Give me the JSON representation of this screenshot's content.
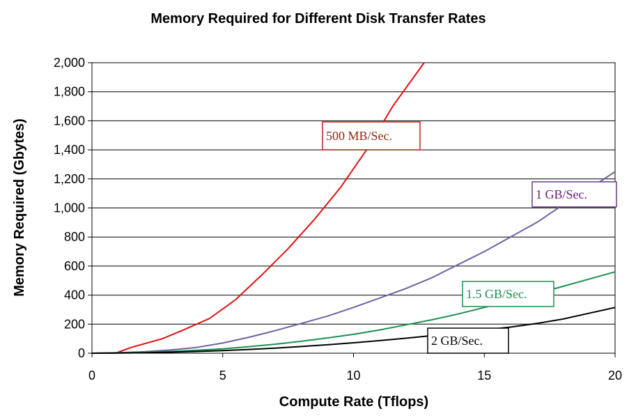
{
  "chart_data": {
    "type": "line",
    "title": "Memory Required for Different Disk Transfer Rates",
    "xlabel": "Compute Rate (Tflops)",
    "ylabel": "Memory Required (Gbytes)",
    "xlim": [
      0,
      20
    ],
    "ylim": [
      0,
      2000
    ],
    "x_ticks": [
      "0",
      "5",
      "10",
      "15",
      "20"
    ],
    "y_ticks": [
      "0",
      "200",
      "400",
      "600",
      "800",
      "1,000",
      "1,200",
      "1,400",
      "1,600",
      "1,800",
      "2,000"
    ],
    "grid": "horizontal",
    "series": [
      {
        "name": "500 MB/Sec.",
        "color": "#e01010",
        "x": [
          0,
          0.9,
          1.5,
          2.7,
          3.5,
          4.5,
          5.5,
          6.5,
          7.5,
          8.5,
          9.5,
          10.5,
          11.5,
          12.7
        ],
        "y": [
          0,
          0,
          40,
          100,
          160,
          240,
          370,
          540,
          720,
          920,
          1140,
          1400,
          1700,
          2000
        ]
      },
      {
        "name": "1 GB/Sec.",
        "color": "#6b62a0",
        "x": [
          0,
          1,
          2,
          3,
          4,
          5,
          6,
          7,
          8,
          9,
          10,
          11,
          12,
          13,
          14,
          15,
          16,
          17,
          18,
          19,
          20
        ],
        "y": [
          0,
          4,
          10,
          22,
          40,
          70,
          110,
          155,
          205,
          255,
          315,
          380,
          445,
          520,
          610,
          700,
          800,
          900,
          1020,
          1130,
          1250
        ]
      },
      {
        "name": "1.5 GB/Sec.",
        "color": "#1a9050",
        "x": [
          0,
          1,
          2,
          3,
          4,
          5,
          6,
          7,
          8,
          9,
          10,
          11,
          12,
          13,
          14,
          15,
          16,
          17,
          18,
          19,
          20
        ],
        "y": [
          0,
          2,
          6,
          12,
          20,
          30,
          45,
          62,
          82,
          105,
          130,
          160,
          195,
          230,
          270,
          315,
          360,
          410,
          460,
          510,
          560
        ]
      },
      {
        "name": "2 GB/Sec.",
        "color": "#000000",
        "x": [
          0,
          1,
          2,
          3,
          4,
          5,
          6,
          7,
          8,
          9,
          10,
          11,
          12,
          13,
          14,
          15,
          16,
          17,
          18,
          19,
          20
        ],
        "y": [
          0,
          1,
          3,
          7,
          12,
          18,
          26,
          35,
          46,
          58,
          72,
          87,
          103,
          121,
          140,
          160,
          180,
          205,
          235,
          275,
          315
        ]
      }
    ],
    "annotations": [
      {
        "text": "500 MB/Sec.",
        "color": "#8b2a10",
        "border": "#c02020",
        "series": 0
      },
      {
        "text": "1 GB/Sec.",
        "color": "#6a1a7a",
        "border": "#6a3a8a",
        "series": 1
      },
      {
        "text": "1.5 GB/Sec.",
        "color": "#1a9050",
        "border": "#1a9050",
        "series": 2
      },
      {
        "text": "2 GB/Sec.",
        "color": "#000000",
        "border": "#000000",
        "series": 3
      }
    ]
  }
}
